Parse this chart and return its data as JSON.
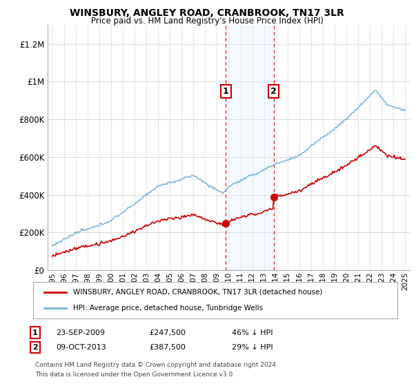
{
  "title": "WINSBURY, ANGLEY ROAD, CRANBROOK, TN17 3LR",
  "subtitle": "Price paid vs. HM Land Registry's House Price Index (HPI)",
  "ylabel_ticks": [
    "£0",
    "£200K",
    "£400K",
    "£600K",
    "£800K",
    "£1M",
    "£1.2M"
  ],
  "ytick_values": [
    0,
    200000,
    400000,
    600000,
    800000,
    1000000,
    1200000
  ],
  "ylim": [
    0,
    1300000
  ],
  "sale1_year": 2009.75,
  "sale1_price": 247500,
  "sale2_year": 2013.833,
  "sale2_price": 387500,
  "hpi_color": "#7ab3d4",
  "price_color": "#cc0000",
  "shade_color": "#ddeeff",
  "grid_color": "#d8d8d8",
  "legend_label1": "WINSBURY, ANGLEY ROAD, CRANBROOK, TN17 3LR (detached house)",
  "legend_label2": "HPI: Average price, detached house, Tunbridge Wells",
  "footer1": "Contains HM Land Registry data © Crown copyright and database right 2024.",
  "footer2": "This data is licensed under the Open Government Licence v3.0.",
  "note1_date": "23-SEP-2009",
  "note1_price": "£247,500",
  "note1_pct": "46% ↓ HPI",
  "note2_date": "09-OCT-2013",
  "note2_price": "£387,500",
  "note2_pct": "29% ↓ HPI"
}
